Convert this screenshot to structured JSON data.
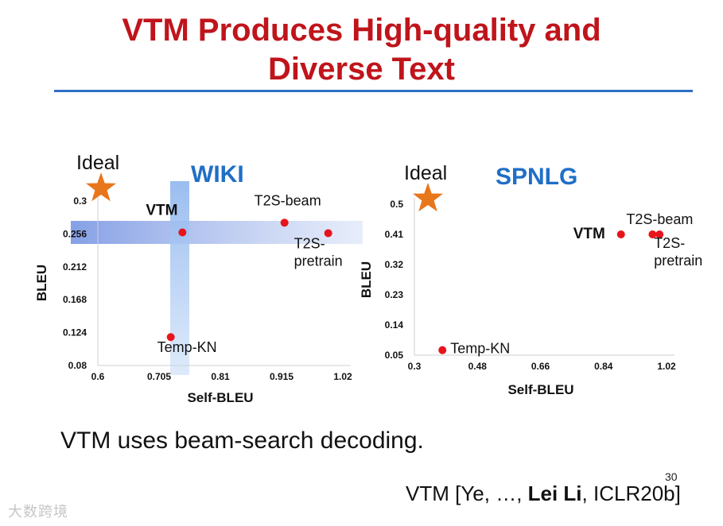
{
  "slide": {
    "title_line1": "VTM Produces High-quality and",
    "title_line2": "Diverse Text",
    "caption": "VTM uses beam-search decoding.",
    "page_number": "30",
    "citation": {
      "prefix": "VTM [Ye, …, ",
      "bold": "Lei Li",
      "suffix": ", ICLR20b]"
    },
    "watermark": "大数跨境",
    "colors": {
      "title": "#c0141b",
      "rule": "#2f6fc6",
      "panel_title": "#1f6fc6",
      "point": "#e8141b",
      "star": "#e8761b"
    }
  },
  "chart_data": [
    {
      "type": "scatter",
      "title": "WIKI",
      "xlabel": "Self-BLEU",
      "ylabel": "BLEU",
      "xlim": [
        0.6,
        1.02
      ],
      "ylim": [
        0.08,
        0.3
      ],
      "x_ticks": [
        "0.6",
        "0.705",
        "0.81",
        "0.915",
        "1.02"
      ],
      "y_ticks": [
        "0.08",
        "0.124",
        "0.168",
        "0.212",
        "0.256",
        "0.3"
      ],
      "ideal_label": "Ideal",
      "points": [
        {
          "label": "VTM",
          "x": 0.745,
          "y": 0.258,
          "bold": true
        },
        {
          "label": "T2S-beam",
          "x": 0.92,
          "y": 0.271,
          "bold": false
        },
        {
          "label": "T2S-\npretrain",
          "x": 0.995,
          "y": 0.257,
          "bold": false
        },
        {
          "label": "Temp-KN",
          "x": 0.725,
          "y": 0.118,
          "bold": false
        }
      ],
      "highlight": {
        "vtm_bands": true
      }
    },
    {
      "type": "scatter",
      "title": "SPNLG",
      "xlabel": "Self-BLEU",
      "ylabel": "BLEU",
      "xlim": [
        0.3,
        1.02
      ],
      "ylim": [
        0.05,
        0.5
      ],
      "x_ticks": [
        "0.3",
        "0.48",
        "0.66",
        "0.84",
        "1.02"
      ],
      "y_ticks": [
        "0.05",
        "0.14",
        "0.23",
        "0.32",
        "0.41",
        "0.5"
      ],
      "ideal_label": "Ideal",
      "points": [
        {
          "label": "VTM",
          "x": 0.89,
          "y": 0.41,
          "bold": true
        },
        {
          "label": "T2S-beam",
          "x": 0.98,
          "y": 0.41,
          "bold": false
        },
        {
          "label": "T2S-\npretrain",
          "x": 1.0,
          "y": 0.41,
          "bold": false
        },
        {
          "label": "Temp-KN",
          "x": 0.38,
          "y": 0.065,
          "bold": false
        }
      ],
      "highlight": {
        "vtm_bands": false
      }
    }
  ]
}
